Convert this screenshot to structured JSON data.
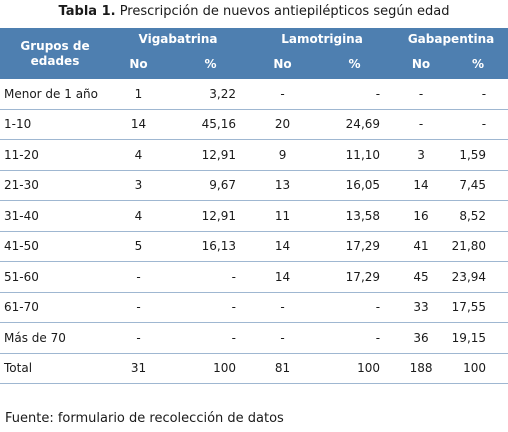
{
  "caption": {
    "label": "Tabla 1.",
    "text": " Prescripción de nuevos antiepilépticos según edad"
  },
  "header": {
    "group_label": "Grupos de edades",
    "drugs": [
      "Vigabatrina",
      "Lamotrigina",
      "Gabapentina"
    ],
    "sub": [
      "No",
      "%",
      "No",
      "%",
      "No",
      "%"
    ]
  },
  "rows": [
    [
      "Menor de 1 año",
      "1",
      "3,22",
      "-",
      "-",
      "-",
      "-"
    ],
    [
      "1-10",
      "14",
      "45,16",
      "20",
      "24,69",
      "-",
      "-"
    ],
    [
      "11-20",
      "4",
      "12,91",
      "9",
      "11,10",
      "3",
      "1,59"
    ],
    [
      "21-30",
      "3",
      "9,67",
      "13",
      "16,05",
      "14",
      "7,45"
    ],
    [
      "31-40",
      "4",
      "12,91",
      "11",
      "13,58",
      "16",
      "8,52"
    ],
    [
      "41-50",
      "5",
      "16,13",
      "14",
      "17,29",
      "41",
      "21,80"
    ],
    [
      "51-60",
      "-",
      "-",
      "14",
      "17,29",
      "45",
      "23,94"
    ],
    [
      "61-70",
      "-",
      "-",
      "-",
      "-",
      "33",
      "17,55"
    ],
    [
      "Más de 70",
      "-",
      "-",
      "-",
      "-",
      "36",
      "19,15"
    ],
    [
      "Total",
      "31",
      "100",
      "81",
      "100",
      "188",
      "100"
    ]
  ],
  "footer": "Fuente: formulario de recolección de datos"
}
